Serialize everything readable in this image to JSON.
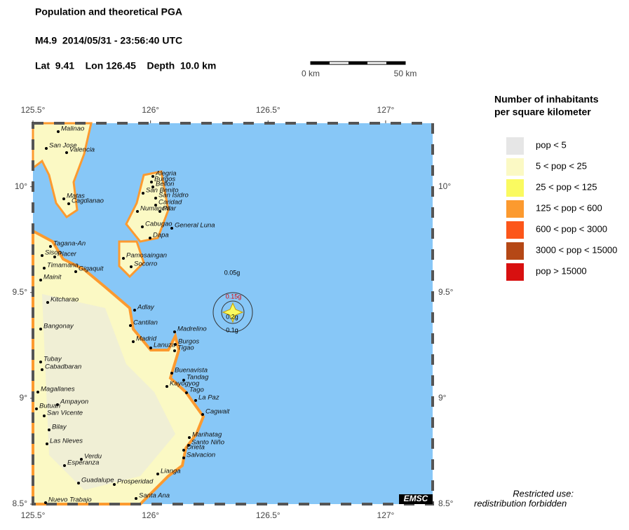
{
  "header": {
    "title": "Population and theoretical PGA",
    "event": "M4.9  2014/05/31 - 23:56:40 UTC",
    "location": "Lat  9.41    Lon 126.45    Depth  10.0 km"
  },
  "scale_bar": {
    "start": "0 km",
    "end": "50 km"
  },
  "map": {
    "lonlim": [
      125.5,
      127.2
    ],
    "latlim": [
      8.5,
      10.3
    ],
    "lon_ticks": [
      {
        "value": 125.5,
        "label": "125.5°"
      },
      {
        "value": 126,
        "label": "126°"
      },
      {
        "value": 126.5,
        "label": "126.5°"
      },
      {
        "value": 127,
        "label": "127°"
      }
    ],
    "lat_ticks": [
      {
        "value": 8.5,
        "label": "8.5°"
      },
      {
        "value": 9,
        "label": "9°"
      },
      {
        "value": 9.5,
        "label": "9.5°"
      },
      {
        "value": 10,
        "label": "10°"
      }
    ],
    "pga_labels": [
      "0.05g",
      "0.15g",
      "0.2g",
      "0.1g"
    ],
    "towns": [
      "Malinao",
      "San Jose",
      "Valencia",
      "Alegria",
      "Burgos",
      "Bellon",
      "San Benito",
      "San Isidro",
      "Matas",
      "Cagdianao",
      "Caridad",
      "Numancia",
      "Pilar",
      "Cabugao",
      "General Luna",
      "Dapa",
      "Tagana-An",
      "Sison",
      "Placer",
      "Pamosaingan",
      "Socorro",
      "Timamana",
      "Gigaquit",
      "Mainit",
      "Kitcharao",
      "Adlay",
      "Bangonay",
      "Cantilan",
      "Madrelino",
      "Madrid",
      "Lanuza",
      "Burgos",
      "Tigao",
      "Tubay",
      "Cabadbaran",
      "Buenavista",
      "Tandag",
      "Kayogyog",
      "Tago",
      "Magallanes",
      "La Paz",
      "Ampayon",
      "Butuan",
      "San Vicente",
      "Cagwait",
      "Bilay",
      "Marihatag",
      "Santo Niño",
      "Las Nieves",
      "Orieta",
      "Salvacion",
      "Verdu",
      "Esperanza",
      "Lianga",
      "Guadalupe",
      "Prosperidad",
      "Nuevo Trabajo",
      "Santa Ana"
    ],
    "agency": "EMSC"
  },
  "legend": {
    "title": [
      "Number of inhabitants",
      "per square kilometer"
    ],
    "entries": [
      {
        "label": "pop < 5",
        "color": "#e6e6e6"
      },
      {
        "label": "5 < pop < 25",
        "color": "#fbf9c4"
      },
      {
        "label": "25 < pop < 125",
        "color": "#fafa60"
      },
      {
        "label": "125 < pop < 600",
        "color": "#fc9a2f"
      },
      {
        "label": "600 < pop < 3000",
        "color": "#fc561a"
      },
      {
        "label": "3000 < pop < 15000",
        "color": "#b54816"
      },
      {
        "label": "pop > 15000",
        "color": "#d81010"
      }
    ]
  },
  "note": [
    "Restricted use:",
    "redistribution forbidden"
  ]
}
